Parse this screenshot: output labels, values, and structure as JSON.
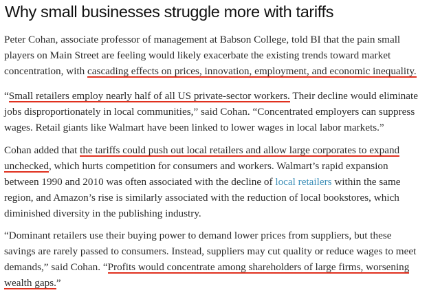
{
  "title": "Why small businesses struggle more with tariffs",
  "colors": {
    "underline": "#e0301e",
    "link": "#3d8fb8",
    "text": "#2a2a2a",
    "heading": "#111111"
  },
  "paragraphs": [
    {
      "lines": [
        {
          "segments": [
            {
              "text": "Peter Cohan, associate professor of management at Babson College, told BI that the pain small"
            }
          ]
        },
        {
          "segments": [
            {
              "text": "players on Main Street are feeling would likely exacerbate the existing trends toward market"
            }
          ]
        },
        {
          "segments": [
            {
              "text": "concentration, with "
            },
            {
              "text": "cascading effects on prices, innovation, employment, and economic inequality.",
              "style": "hl"
            }
          ]
        }
      ]
    },
    {
      "lines": [
        {
          "segments": [
            {
              "text": "“"
            },
            {
              "text": "Small retailers employ nearly half of all US private-sector workers.",
              "style": "hl"
            },
            {
              "text": " Their decline would eliminate"
            }
          ]
        },
        {
          "segments": [
            {
              "text": "jobs disproportionately in local communities,” said Cohan. “Concentrated employers can suppress"
            }
          ]
        },
        {
          "segments": [
            {
              "text": "wages. Retail giants like Walmart have been linked to lower wages in local labor markets.”"
            }
          ]
        }
      ]
    },
    {
      "lines": [
        {
          "segments": [
            {
              "text": "Cohan added that "
            },
            {
              "text": "the tariffs could push out local retailers and allow large corporates to expand",
              "style": "hl"
            }
          ]
        },
        {
          "segments": [
            {
              "text": "unchecked",
              "style": "hl"
            },
            {
              "text": ", which hurts competition for consumers and workers. Walmart’s rapid expansion"
            }
          ]
        },
        {
          "segments": [
            {
              "text": "between 1990 and 2010 was often associated with the decline of "
            },
            {
              "text": "local retailers",
              "style": "link"
            },
            {
              "text": " within the same"
            }
          ]
        },
        {
          "segments": [
            {
              "text": "region, and Amazon’s rise is similarly associated with the reduction of local bookstores, which"
            }
          ]
        },
        {
          "segments": [
            {
              "text": "diminished diversity in the publishing industry."
            }
          ]
        }
      ]
    },
    {
      "lines": [
        {
          "segments": [
            {
              "text": "“Dominant retailers use their buying power to demand lower prices from suppliers, but these"
            }
          ]
        },
        {
          "segments": [
            {
              "text": "savings are rarely passed to consumers. Instead, suppliers may cut quality or reduce wages to meet"
            }
          ]
        },
        {
          "segments": [
            {
              "text": "demands,” said Cohan. “"
            },
            {
              "text": "Profits would concentrate among shareholders of large firms, worsening",
              "style": "hl"
            }
          ]
        },
        {
          "segments": [
            {
              "text": "wealth gaps.",
              "style": "hl"
            },
            {
              "text": "”"
            }
          ]
        }
      ]
    }
  ]
}
